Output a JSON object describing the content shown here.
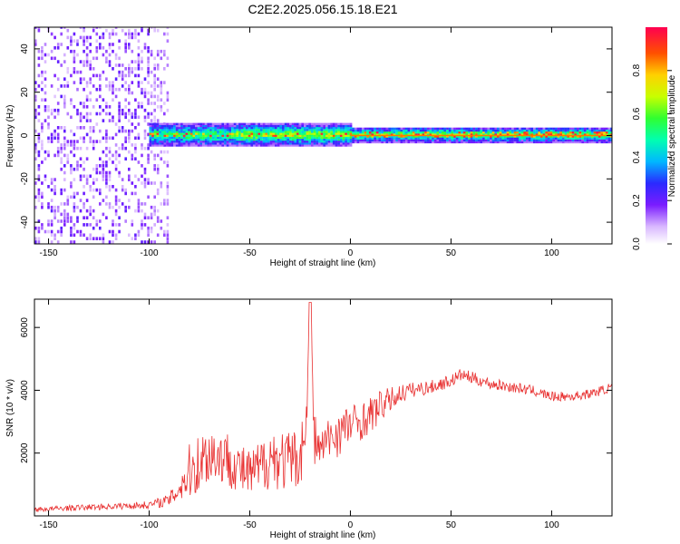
{
  "title": "C2E2.2025.056.15.18.E21",
  "colors": {
    "snr_line": "#e83030",
    "axis": "#000000",
    "background": "#ffffff"
  },
  "chart_data": [
    {
      "type": "heatmap",
      "xlabel": "Height of straight line (km)",
      "ylabel": "Frequency (Hz)",
      "xlim": [
        -157,
        130
      ],
      "ylim": [
        -50,
        50
      ],
      "x_ticks": [
        -150,
        -100,
        -50,
        0,
        50,
        100
      ],
      "y_ticks": [
        -40,
        -20,
        0,
        20,
        40
      ],
      "colorbar": {
        "label": "Normalized spectral amplitude",
        "range": [
          0,
          1
        ],
        "ticks": [
          0.0,
          0.2,
          0.4,
          0.6,
          0.8
        ],
        "colormap": "rainbow"
      },
      "features": {
        "noise_region_x": [
          -157,
          -90
        ],
        "signal_band_center_hz": 0,
        "signal_band_width_hz": [
          6,
          10
        ],
        "strong_signal_x": [
          -60,
          130
        ]
      }
    },
    {
      "type": "line",
      "xlabel": "Height of straight line (km)",
      "ylabel": "SNR (10 * v/v)",
      "xlim": [
        -157,
        130
      ],
      "ylim": [
        0,
        6900
      ],
      "x_ticks": [
        -150,
        -100,
        -50,
        0,
        50,
        100
      ],
      "y_ticks": [
        2000,
        4000,
        6000
      ],
      "series": [
        {
          "x": [
            -157,
            -140,
            -120,
            -100,
            -90,
            -85,
            -80,
            -75,
            -70,
            -65,
            -60,
            -55,
            -50,
            -45,
            -40,
            -35,
            -30,
            -25,
            -22,
            -20,
            -18,
            -15,
            -10,
            -5,
            0,
            5,
            10,
            15,
            20,
            25,
            30,
            40,
            50,
            55,
            60,
            70,
            80,
            90,
            100,
            110,
            120,
            130
          ],
          "y": [
            200,
            250,
            300,
            350,
            500,
            900,
            1400,
            1700,
            2000,
            1900,
            1800,
            1500,
            1300,
            1500,
            1900,
            1800,
            1700,
            1900,
            2800,
            6800,
            2500,
            2100,
            2500,
            2700,
            2900,
            3000,
            3200,
            3500,
            3700,
            3900,
            4000,
            4100,
            4300,
            4500,
            4400,
            4200,
            4100,
            4000,
            3800,
            3800,
            3900,
            4100
          ],
          "spread": [
            80,
            90,
            100,
            120,
            200,
            500,
            900,
            1000,
            1000,
            900,
            900,
            800,
            800,
            900,
            1000,
            1000,
            1000,
            1000,
            900,
            200,
            900,
            600,
            700,
            800,
            700,
            600,
            600,
            500,
            400,
            300,
            250,
            220,
            200,
            200,
            200,
            180,
            170,
            160,
            150,
            150,
            150,
            150
          ]
        }
      ]
    }
  ]
}
